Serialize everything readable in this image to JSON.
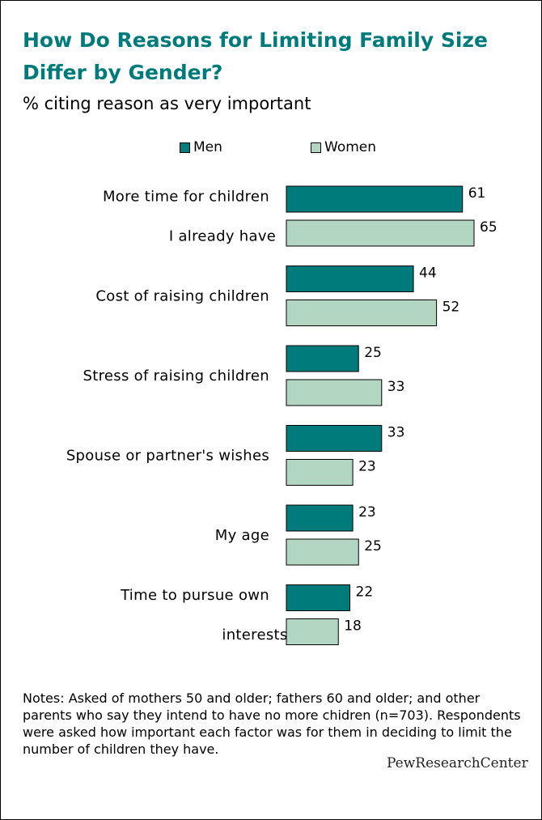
{
  "title": "How Do Reasons for Limiting Family Size Differ by Gender?",
  "subtitle": "% citing reason as very important",
  "notes": "Notes: Asked of mothers 50 and older; fathers 60 and older; and other parents who say they intend to have no more chidren (n=703). Respondents were asked how important each factor was for them in deciding to limit the number of children they have.",
  "logo_text": "PewResearchCenter",
  "colors": {
    "men": "#007b7b",
    "women": "#b3d6c3",
    "title": "#007b7b"
  },
  "chart_data": {
    "type": "bar",
    "orientation": "horizontal",
    "title": "How Do Reasons for Limiting Family Size Differ by Gender?",
    "subtitle": "% citing reason as very important",
    "categories": [
      [
        "More time for children",
        "I already have"
      ],
      [
        "Cost of raising children"
      ],
      [
        "Stress of raising children"
      ],
      [
        "Spouse or partner's wishes"
      ],
      [
        "My age"
      ],
      [
        "Time to pursue own",
        "interests"
      ]
    ],
    "series": [
      {
        "name": "Men",
        "values": [
          61,
          44,
          25,
          33,
          23,
          22
        ]
      },
      {
        "name": "Women",
        "values": [
          65,
          52,
          33,
          23,
          25,
          18
        ]
      }
    ],
    "xlim": [
      0,
      65
    ],
    "grid": false,
    "legend_position": "top"
  }
}
